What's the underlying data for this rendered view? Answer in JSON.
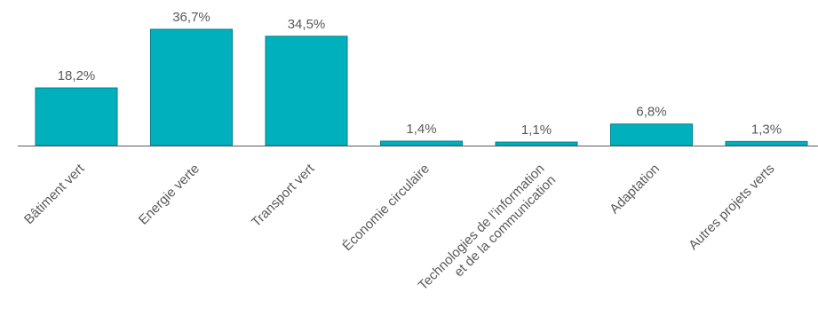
{
  "chart_data": {
    "type": "bar",
    "title": "",
    "xlabel": "",
    "ylabel": "",
    "categories": [
      [
        "Bâtiment vert"
      ],
      [
        "Energie verte"
      ],
      [
        "Transport vert"
      ],
      [
        "Économie circulaire"
      ],
      [
        "Technologies de l’information",
        "et de la communication"
      ],
      [
        "Adaptation"
      ],
      [
        "Autres projets verts"
      ]
    ],
    "values": [
      18.2,
      36.7,
      34.5,
      1.4,
      1.1,
      6.8,
      1.3
    ],
    "value_labels": [
      "18,2%",
      "36,7%",
      "34,5%",
      "1,4%",
      "1,1%",
      "6,8%",
      "1,3%"
    ],
    "ylim": [
      0,
      36.7
    ],
    "grid": false,
    "legend": "none",
    "colors": {
      "bar_fill": "#00B0BD",
      "bar_stroke": "#00808B",
      "axis": "#595959",
      "label": "#595959"
    }
  }
}
